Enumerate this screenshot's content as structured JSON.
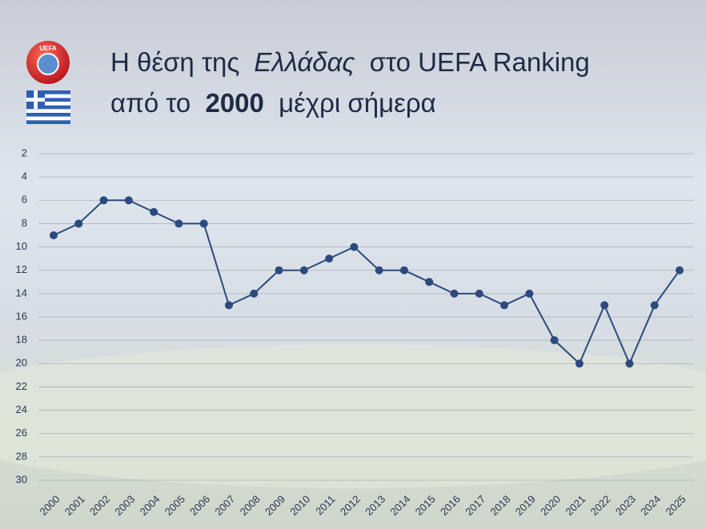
{
  "chart_data": {
    "type": "line",
    "title": [
      "Η θέση της",
      "Ελλάδας",
      "στο UEFA Ranking",
      "από το",
      "2000",
      "μέχρι σήμερα"
    ],
    "logo_text": "UEFA",
    "categories": [
      "2000",
      "2001",
      "2002",
      "2003",
      "2004",
      "2005",
      "2006",
      "2007",
      "2008",
      "2009",
      "2010",
      "2011",
      "2012",
      "2013",
      "2014",
      "2015",
      "2016",
      "2017",
      "2018",
      "2019",
      "2020",
      "2021",
      "2022",
      "2023",
      "2024",
      "2025"
    ],
    "values": [
      9,
      8,
      6,
      6,
      7,
      8,
      8,
      15,
      14,
      12,
      12,
      11,
      10,
      12,
      12,
      13,
      14,
      14,
      15,
      14,
      18,
      20,
      15,
      20,
      15,
      12
    ],
    "color": "#2b4a7e",
    "ylim": [
      2,
      30
    ],
    "yticks": [
      2,
      4,
      6,
      8,
      10,
      12,
      14,
      16,
      18,
      20,
      22,
      24,
      26,
      28,
      30
    ],
    "y_inverted": true,
    "grid": true
  }
}
